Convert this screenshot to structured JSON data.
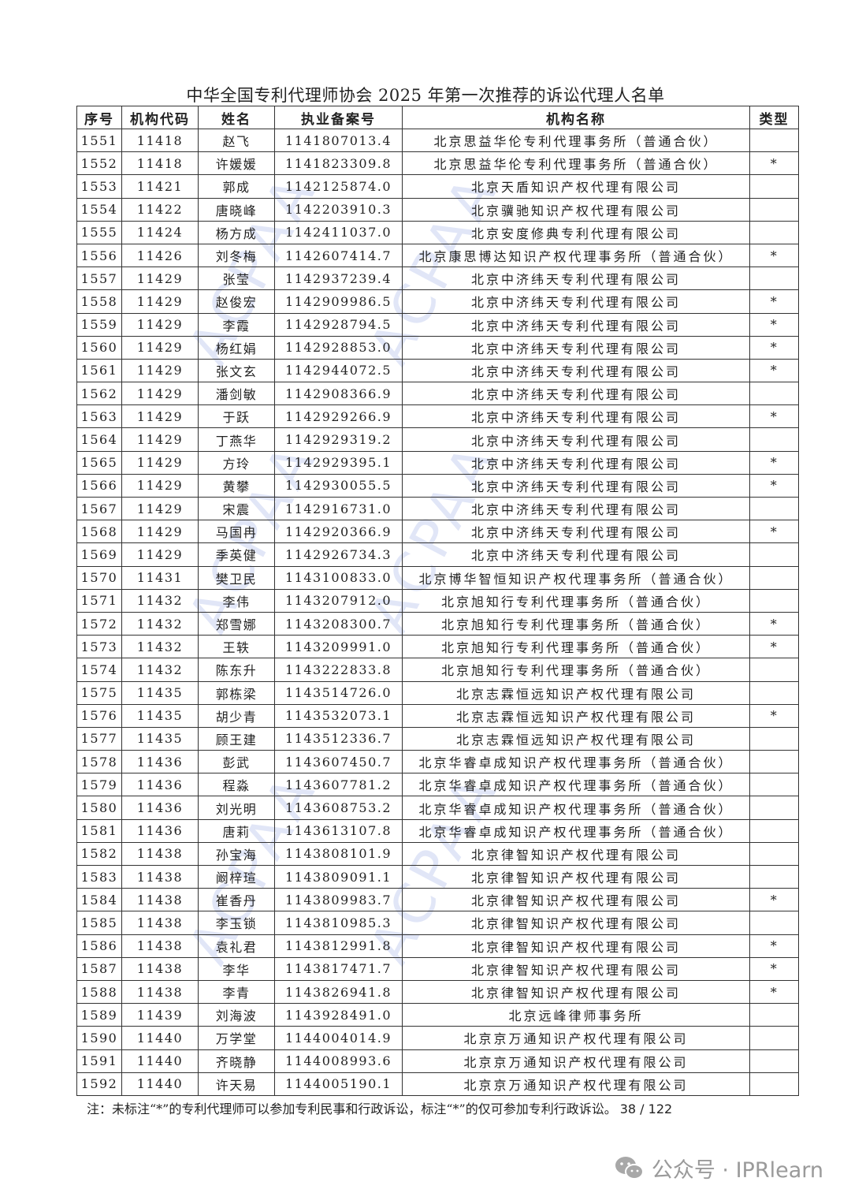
{
  "title": "中华全国专利代理师协会 2025 年第一次推荐的诉讼代理人名单",
  "columns": [
    "序号",
    "机构代码",
    "姓名",
    "执业备案号",
    "机构名称",
    "类型"
  ],
  "rows": [
    [
      "1551",
      "11418",
      "赵飞",
      "1141807013.4",
      "北京思益华伦专利代理事务所（普通合伙）",
      ""
    ],
    [
      "1552",
      "11418",
      "许媛媛",
      "1141823309.8",
      "北京思益华伦专利代理事务所（普通合伙）",
      "*"
    ],
    [
      "1553",
      "11421",
      "郭成",
      "1142125874.0",
      "北京天盾知识产权代理有限公司",
      ""
    ],
    [
      "1554",
      "11422",
      "唐晓峰",
      "1142203910.3",
      "北京骥驰知识产权代理有限公司",
      ""
    ],
    [
      "1555",
      "11424",
      "杨方成",
      "1142411037.0",
      "北京安度修典专利代理有限公司",
      ""
    ],
    [
      "1556",
      "11426",
      "刘冬梅",
      "1142607414.7",
      "北京康思博达知识产权代理事务所（普通合伙）",
      "*"
    ],
    [
      "1557",
      "11429",
      "张莹",
      "1142937239.4",
      "北京中济纬天专利代理有限公司",
      ""
    ],
    [
      "1558",
      "11429",
      "赵俊宏",
      "1142909986.5",
      "北京中济纬天专利代理有限公司",
      "*"
    ],
    [
      "1559",
      "11429",
      "李霞",
      "1142928794.5",
      "北京中济纬天专利代理有限公司",
      "*"
    ],
    [
      "1560",
      "11429",
      "杨红娟",
      "1142928853.0",
      "北京中济纬天专利代理有限公司",
      "*"
    ],
    [
      "1561",
      "11429",
      "张文玄",
      "1142944072.5",
      "北京中济纬天专利代理有限公司",
      "*"
    ],
    [
      "1562",
      "11429",
      "潘剑敏",
      "1142908366.9",
      "北京中济纬天专利代理有限公司",
      ""
    ],
    [
      "1563",
      "11429",
      "于跃",
      "1142929266.9",
      "北京中济纬天专利代理有限公司",
      "*"
    ],
    [
      "1564",
      "11429",
      "丁燕华",
      "1142929319.2",
      "北京中济纬天专利代理有限公司",
      ""
    ],
    [
      "1565",
      "11429",
      "方玲",
      "1142929395.1",
      "北京中济纬天专利代理有限公司",
      "*"
    ],
    [
      "1566",
      "11429",
      "黄攀",
      "1142930055.5",
      "北京中济纬天专利代理有限公司",
      "*"
    ],
    [
      "1567",
      "11429",
      "宋震",
      "1142916731.0",
      "北京中济纬天专利代理有限公司",
      ""
    ],
    [
      "1568",
      "11429",
      "马国冉",
      "1142920366.9",
      "北京中济纬天专利代理有限公司",
      "*"
    ],
    [
      "1569",
      "11429",
      "季英健",
      "1142926734.3",
      "北京中济纬天专利代理有限公司",
      ""
    ],
    [
      "1570",
      "11431",
      "樊卫民",
      "1143100833.0",
      "北京博华智恒知识产权代理事务所（普通合伙）",
      ""
    ],
    [
      "1571",
      "11432",
      "李伟",
      "1143207912.0",
      "北京旭知行专利代理事务所（普通合伙）",
      ""
    ],
    [
      "1572",
      "11432",
      "郑雪娜",
      "1143208300.7",
      "北京旭知行专利代理事务所（普通合伙）",
      "*"
    ],
    [
      "1573",
      "11432",
      "王轶",
      "1143209991.0",
      "北京旭知行专利代理事务所（普通合伙）",
      "*"
    ],
    [
      "1574",
      "11432",
      "陈东升",
      "1143222833.8",
      "北京旭知行专利代理事务所（普通合伙）",
      ""
    ],
    [
      "1575",
      "11435",
      "郭栋梁",
      "1143514726.0",
      "北京志霖恒远知识产权代理有限公司",
      ""
    ],
    [
      "1576",
      "11435",
      "胡少青",
      "1143532073.1",
      "北京志霖恒远知识产权代理有限公司",
      "*"
    ],
    [
      "1577",
      "11435",
      "顾王建",
      "1143512336.7",
      "北京志霖恒远知识产权代理有限公司",
      ""
    ],
    [
      "1578",
      "11436",
      "彭武",
      "1143607450.7",
      "北京华睿卓成知识产权代理事务所（普通合伙）",
      ""
    ],
    [
      "1579",
      "11436",
      "程淼",
      "1143607781.2",
      "北京华睿卓成知识产权代理事务所（普通合伙）",
      ""
    ],
    [
      "1580",
      "11436",
      "刘光明",
      "1143608753.2",
      "北京华睿卓成知识产权代理事务所（普通合伙）",
      ""
    ],
    [
      "1581",
      "11436",
      "唐莉",
      "1143613107.8",
      "北京华睿卓成知识产权代理事务所（普通合伙）",
      ""
    ],
    [
      "1582",
      "11438",
      "孙宝海",
      "1143808101.9",
      "北京律智知识产权代理有限公司",
      ""
    ],
    [
      "1583",
      "11438",
      "阚梓瑄",
      "1143809091.1",
      "北京律智知识产权代理有限公司",
      ""
    ],
    [
      "1584",
      "11438",
      "崔香丹",
      "1143809983.7",
      "北京律智知识产权代理有限公司",
      "*"
    ],
    [
      "1585",
      "11438",
      "李玉锁",
      "1143810985.3",
      "北京律智知识产权代理有限公司",
      ""
    ],
    [
      "1586",
      "11438",
      "袁礼君",
      "1143812991.8",
      "北京律智知识产权代理有限公司",
      "*"
    ],
    [
      "1587",
      "11438",
      "李华",
      "1143817471.7",
      "北京律智知识产权代理有限公司",
      "*"
    ],
    [
      "1588",
      "11438",
      "李青",
      "1143826941.8",
      "北京律智知识产权代理有限公司",
      "*"
    ],
    [
      "1589",
      "11439",
      "刘海波",
      "1143928491.0",
      "北京远峰律师事务所",
      ""
    ],
    [
      "1590",
      "11440",
      "万学堂",
      "1144004014.9",
      "北京京万通知识产权代理有限公司",
      ""
    ],
    [
      "1591",
      "11440",
      "齐晓静",
      "1144008993.6",
      "北京京万通知识产权代理有限公司",
      ""
    ],
    [
      "1592",
      "11440",
      "许天易",
      "1144005190.1",
      "北京京万通知识产权代理有限公司",
      ""
    ]
  ],
  "note": "注：未标注“*”的专利代理师可以参加专利民事和行政诉讼，标注“*”的仅可参加专利行政诉讼。",
  "page": "38 / 122",
  "watermark_stamp": "ACPAA",
  "wechat": {
    "icon": "wechat-icon",
    "label": "公众号 · IPRlearn"
  }
}
